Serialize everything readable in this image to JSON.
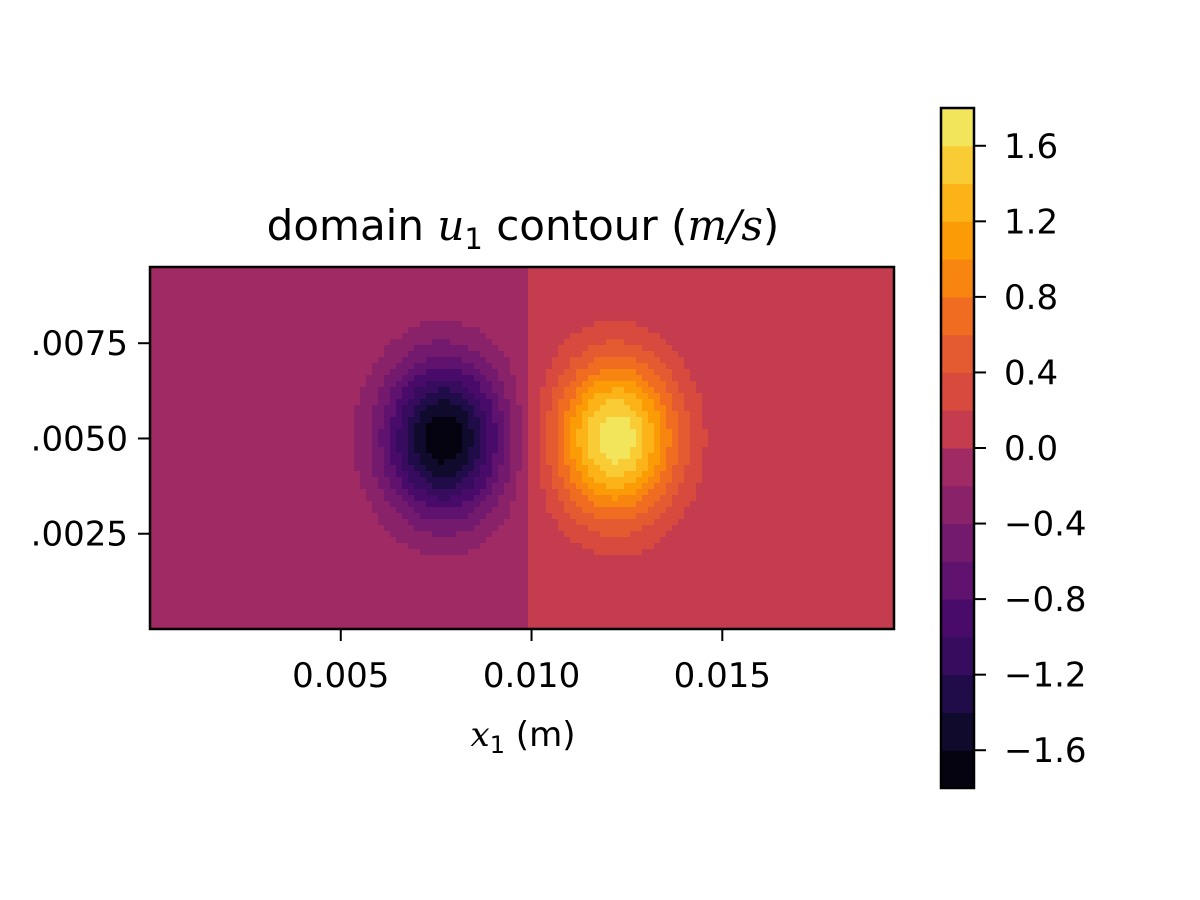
{
  "chart_data": {
    "type": "heatmap",
    "title": {
      "prefix": "domain ",
      "var": "u",
      "sub": "1",
      "middle": " contour (",
      "unit_math": "m/s",
      "suffix": ")"
    },
    "xlabel": {
      "var": "x",
      "sub": "1",
      "unit": " (m)"
    },
    "ylabel": "",
    "xlim": [
      0.0,
      0.0195
    ],
    "ylim": [
      0.0,
      0.0095
    ],
    "xticks": [
      0.005,
      0.01,
      0.015
    ],
    "xtick_labels": [
      "0.005",
      "0.010",
      "0.015"
    ],
    "yticks": [
      0.0025,
      0.005,
      0.0075
    ],
    "ytick_labels": [
      ".0025",
      ".0050",
      ".0075"
    ],
    "colorbar": {
      "range": [
        -1.8,
        1.8
      ],
      "levels": [
        -1.8,
        -1.6,
        -1.4,
        -1.2,
        -1.0,
        -0.8,
        -0.6,
        -0.4,
        -0.2,
        0.0,
        0.2,
        0.4,
        0.6,
        0.8,
        1.0,
        1.2,
        1.4,
        1.6,
        1.8
      ],
      "colors": [
        "#05030f",
        "#100b2d",
        "#1f0c48",
        "#370b5e",
        "#480b6a",
        "#5f136e",
        "#731a6e",
        "#8a226a",
        "#a02a63",
        "#c43c4e",
        "#d84a3d",
        "#e45a31",
        "#f06c20",
        "#f8850f",
        "#fb9b06",
        "#fbb318",
        "#f9cb35",
        "#f2e55c",
        "#f2f28a"
      ],
      "ticks": [
        -1.6,
        -1.2,
        -0.8,
        -0.4,
        0.0,
        0.4,
        0.8,
        1.2,
        1.6
      ],
      "tick_labels": [
        "−1.6",
        "−1.2",
        "−0.8",
        "−0.4",
        "0.0",
        "0.4",
        "0.8",
        "1.2",
        "1.6"
      ]
    },
    "field": {
      "background_value": 0.0,
      "negative_lobe": {
        "center": [
          0.0077,
          0.005
        ],
        "peak": -1.75
      },
      "positive_lobe": {
        "center": [
          0.0122,
          0.005
        ],
        "peak": 1.75
      }
    },
    "grid": false
  }
}
